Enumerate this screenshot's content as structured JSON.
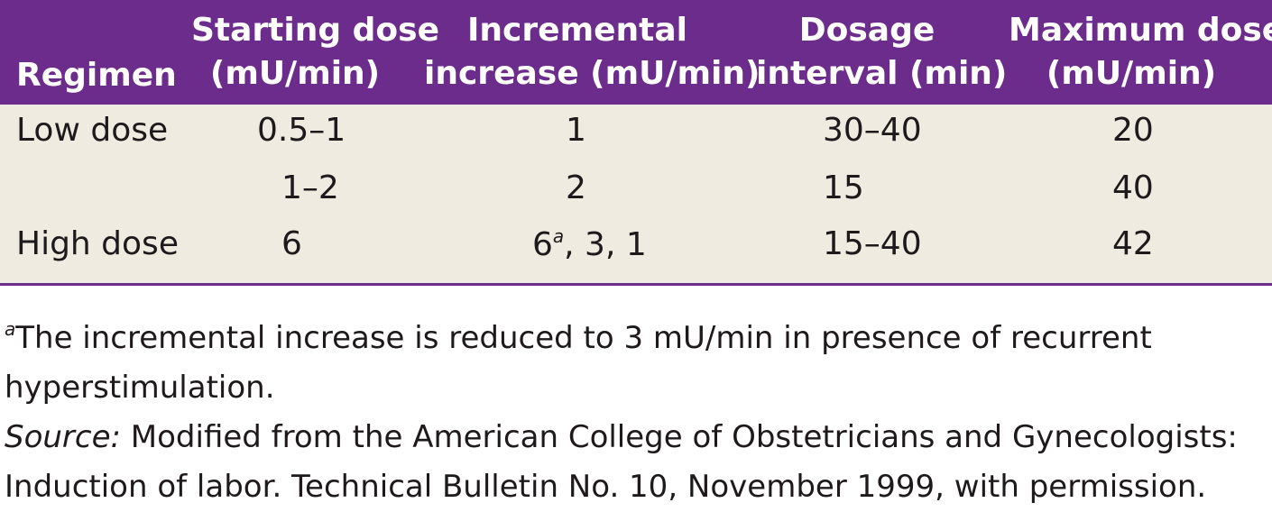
{
  "headers": {
    "regimen": "Regimen",
    "starting_dose": [
      "Starting dose",
      "(mU/min)"
    ],
    "incremental_increase": [
      "Incremental",
      "increase (mU/min)"
    ],
    "dosage_interval": [
      "Dosage",
      "interval (min)"
    ],
    "maximum_dose": [
      "Maximum dose",
      "(mU/min)"
    ]
  },
  "rows": [
    {
      "regimen": "Low dose",
      "starting": "0.5–1",
      "increment": "1",
      "increment_sup": "",
      "increment_rest": "",
      "interval": "30–40",
      "maximum": "20"
    },
    {
      "regimen": "",
      "starting": "1–2",
      "increment": "2",
      "increment_sup": "",
      "increment_rest": "",
      "interval": "15",
      "maximum": "40"
    },
    {
      "regimen": "High dose",
      "starting": "6",
      "increment": "6",
      "increment_sup": "a",
      "increment_rest": ", 3, 1",
      "interval": "15–40",
      "maximum": "42"
    }
  ],
  "footnote": {
    "mark": "a",
    "line1": "The incremental increase is reduced to 3 mU/min in presence of recurrent",
    "line2": "hyperstimulation."
  },
  "source": {
    "label": "Source:",
    "line1": " Modified from the American College of Obstetricians and Gynecologists:",
    "line2": "Induction of labor. Technical Bulletin No. 10, November 1999, with permission."
  },
  "colors": {
    "header_bg": "#6b2c8b",
    "body_bg": "#efebe1",
    "rule": "#6b2c8b"
  }
}
